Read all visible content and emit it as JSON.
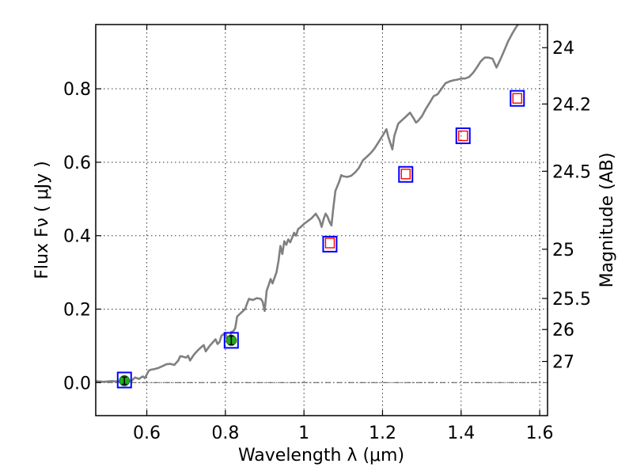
{
  "chart_data": {
    "type": "scatter",
    "title": "",
    "xlabel": "Wavelength  λ (μm)",
    "ylabel": "Flux  Fν ( μJy )",
    "ylabel_right": "Magnitude (AB)",
    "xlim": [
      0.47,
      1.62
    ],
    "ylim": [
      -0.09,
      0.975
    ],
    "xticks": [
      {
        "value": 0.6,
        "label": "0.6"
      },
      {
        "value": 0.8,
        "label": "0.8"
      },
      {
        "value": 1.0,
        "label": "1"
      },
      {
        "value": 1.2,
        "label": "1.2"
      },
      {
        "value": 1.4,
        "label": "1.4"
      },
      {
        "value": 1.6,
        "label": "1.6"
      }
    ],
    "yticks": [
      {
        "value": 0.0,
        "label": "0.0"
      },
      {
        "value": 0.2,
        "label": "0.2"
      },
      {
        "value": 0.4,
        "label": "0.4"
      },
      {
        "value": 0.6,
        "label": "0.6"
      },
      {
        "value": 0.8,
        "label": "0.8"
      }
    ],
    "right_ticks": [
      {
        "value": 24,
        "label": "24"
      },
      {
        "value": 24.2,
        "label": "24.2"
      },
      {
        "value": 24.5,
        "label": "24.5"
      },
      {
        "value": 25,
        "label": "25"
      },
      {
        "value": 25.5,
        "label": "25.5"
      },
      {
        "value": 26,
        "label": "26"
      },
      {
        "value": 27,
        "label": "27"
      }
    ],
    "grid": true,
    "zero_line": true,
    "colors": {
      "sed": "#808080",
      "model_box": "#0000ff",
      "upper_limit": "#ff0000",
      "detection": "#22aa22",
      "errorbar": "#000000"
    },
    "series": [
      {
        "kind": "line",
        "points": [
          [
            0.47,
            0.004
          ],
          [
            0.49,
            0.002
          ],
          [
            0.51,
            0.004
          ],
          [
            0.53,
            0.003
          ],
          [
            0.55,
            0.006
          ],
          [
            0.56,
            0.004
          ],
          [
            0.57,
            0.014
          ],
          [
            0.58,
            0.01
          ],
          [
            0.59,
            0.017
          ],
          [
            0.595,
            0.012
          ],
          [
            0.6,
            0.022
          ],
          [
            0.605,
            0.032
          ],
          [
            0.61,
            0.035
          ],
          [
            0.62,
            0.037
          ],
          [
            0.63,
            0.04
          ],
          [
            0.64,
            0.045
          ],
          [
            0.65,
            0.05
          ],
          [
            0.66,
            0.051
          ],
          [
            0.67,
            0.048
          ],
          [
            0.68,
            0.06
          ],
          [
            0.685,
            0.072
          ],
          [
            0.69,
            0.071
          ],
          [
            0.7,
            0.068
          ],
          [
            0.705,
            0.073
          ],
          [
            0.71,
            0.06
          ],
          [
            0.72,
            0.076
          ],
          [
            0.73,
            0.088
          ],
          [
            0.74,
            0.098
          ],
          [
            0.745,
            0.102
          ],
          [
            0.75,
            0.085
          ],
          [
            0.76,
            0.1
          ],
          [
            0.77,
            0.112
          ],
          [
            0.775,
            0.118
          ],
          [
            0.78,
            0.105
          ],
          [
            0.785,
            0.11
          ],
          [
            0.79,
            0.128
          ],
          [
            0.8,
            0.135
          ],
          [
            0.805,
            0.12
          ],
          [
            0.81,
            0.108
          ],
          [
            0.815,
            0.138
          ],
          [
            0.82,
            0.14
          ],
          [
            0.825,
            0.148
          ],
          [
            0.83,
            0.18
          ],
          [
            0.84,
            0.19
          ],
          [
            0.85,
            0.2
          ],
          [
            0.855,
            0.215
          ],
          [
            0.86,
            0.228
          ],
          [
            0.87,
            0.225
          ],
          [
            0.88,
            0.23
          ],
          [
            0.89,
            0.228
          ],
          [
            0.895,
            0.22
          ],
          [
            0.9,
            0.195
          ],
          [
            0.905,
            0.25
          ],
          [
            0.91,
            0.265
          ],
          [
            0.915,
            0.282
          ],
          [
            0.92,
            0.27
          ],
          [
            0.93,
            0.3
          ],
          [
            0.935,
            0.33
          ],
          [
            0.94,
            0.372
          ],
          [
            0.945,
            0.35
          ],
          [
            0.95,
            0.385
          ],
          [
            0.955,
            0.375
          ],
          [
            0.96,
            0.39
          ],
          [
            0.965,
            0.382
          ],
          [
            0.97,
            0.395
          ],
          [
            0.975,
            0.408
          ],
          [
            0.98,
            0.4
          ],
          [
            0.985,
            0.418
          ],
          [
            0.99,
            0.422
          ],
          [
            1.0,
            0.432
          ],
          [
            1.01,
            0.44
          ],
          [
            1.02,
            0.448
          ],
          [
            1.03,
            0.46
          ],
          [
            1.04,
            0.442
          ],
          [
            1.045,
            0.424
          ],
          [
            1.05,
            0.445
          ],
          [
            1.055,
            0.46
          ],
          [
            1.06,
            0.452
          ],
          [
            1.065,
            0.438
          ],
          [
            1.07,
            0.428
          ],
          [
            1.075,
            0.478
          ],
          [
            1.08,
            0.522
          ],
          [
            1.09,
            0.548
          ],
          [
            1.095,
            0.565
          ],
          [
            1.1,
            0.562
          ],
          [
            1.11,
            0.56
          ],
          [
            1.12,
            0.563
          ],
          [
            1.13,
            0.572
          ],
          [
            1.14,
            0.585
          ],
          [
            1.15,
            0.605
          ],
          [
            1.16,
            0.615
          ],
          [
            1.17,
            0.625
          ],
          [
            1.18,
            0.638
          ],
          [
            1.19,
            0.655
          ],
          [
            1.2,
            0.672
          ],
          [
            1.21,
            0.69
          ],
          [
            1.215,
            0.668
          ],
          [
            1.225,
            0.635
          ],
          [
            1.23,
            0.672
          ],
          [
            1.24,
            0.705
          ],
          [
            1.25,
            0.715
          ],
          [
            1.26,
            0.725
          ],
          [
            1.27,
            0.735
          ],
          [
            1.28,
            0.718
          ],
          [
            1.285,
            0.708
          ],
          [
            1.29,
            0.712
          ],
          [
            1.3,
            0.725
          ],
          [
            1.31,
            0.745
          ],
          [
            1.32,
            0.762
          ],
          [
            1.33,
            0.78
          ],
          [
            1.34,
            0.785
          ],
          [
            1.35,
            0.8
          ],
          [
            1.36,
            0.815
          ],
          [
            1.37,
            0.82
          ],
          [
            1.38,
            0.823
          ],
          [
            1.39,
            0.825
          ],
          [
            1.4,
            0.828
          ],
          [
            1.41,
            0.828
          ],
          [
            1.42,
            0.832
          ],
          [
            1.43,
            0.843
          ],
          [
            1.44,
            0.858
          ],
          [
            1.45,
            0.875
          ],
          [
            1.46,
            0.885
          ],
          [
            1.47,
            0.885
          ],
          [
            1.48,
            0.882
          ],
          [
            1.49,
            0.858
          ],
          [
            1.5,
            0.88
          ],
          [
            1.51,
            0.905
          ],
          [
            1.52,
            0.93
          ],
          [
            1.53,
            0.95
          ],
          [
            1.54,
            0.968
          ],
          [
            1.545,
            0.975
          ]
        ]
      },
      {
        "kind": "model_box",
        "points": [
          [
            0.543,
            0.007
          ],
          [
            0.815,
            0.115
          ],
          [
            1.066,
            0.377
          ],
          [
            1.259,
            0.567
          ],
          [
            1.405,
            0.672
          ],
          [
            1.543,
            0.774
          ]
        ]
      },
      {
        "kind": "upper_limit",
        "points": [
          [
            1.066,
            0.38
          ],
          [
            1.259,
            0.568
          ],
          [
            1.405,
            0.672
          ],
          [
            1.543,
            0.774
          ]
        ]
      },
      {
        "kind": "detection",
        "points": [
          {
            "x": 0.543,
            "y": 0.005,
            "err": 0.01
          },
          {
            "x": 0.815,
            "y": 0.115,
            "err": 0.012
          }
        ]
      }
    ]
  }
}
